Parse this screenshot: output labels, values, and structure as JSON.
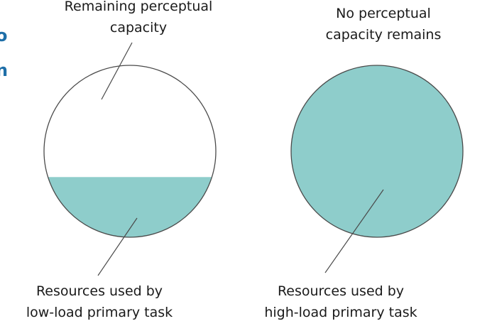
{
  "left_diagram": {
    "top_label": [
      "Remaining perceptual",
      "capacity"
    ],
    "bottom_label": [
      "Resources used by",
      "low-load primary task"
    ],
    "used_fraction": 0.35
  },
  "right_diagram": {
    "top_label": [
      "No perceptual",
      "capacity remains"
    ],
    "bottom_label": [
      "Resources used by",
      "high-load primary task"
    ],
    "used_fraction": 1.0
  },
  "colors": {
    "fill": "#8ecdcb",
    "outline": "#4a4a4a",
    "text": "#1a1a1a",
    "edge_accent": "#1f6fa8"
  },
  "edge_fragments": [
    "o",
    "n"
  ]
}
